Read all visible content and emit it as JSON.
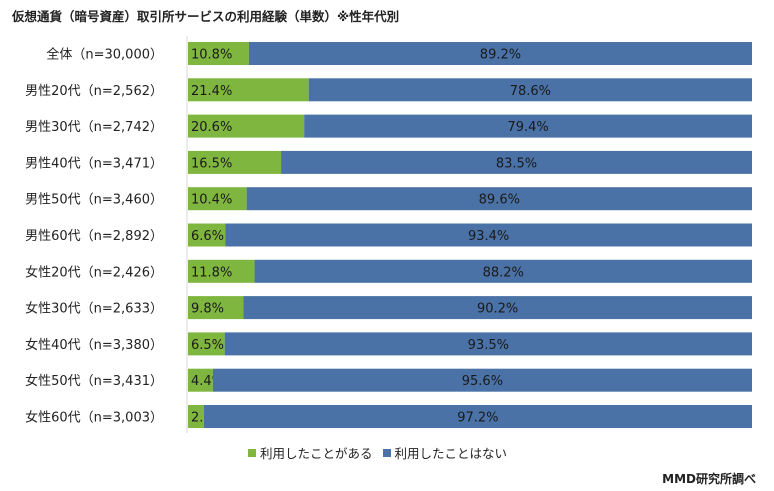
{
  "chart_data": {
    "type": "bar",
    "orientation": "horizontal",
    "stacked": true,
    "title": "仮想通貨（暗号資産）取引所サービスの利用経験（単数）※性年代別",
    "categories": [
      "全体（n=30,000）",
      "男性20代（n=2,562）",
      "男性30代（n=2,742）",
      "男性40代（n=3,471）",
      "男性50代（n=3,460）",
      "男性60代（n=2,892）",
      "女性20代（n=2,426）",
      "女性30代（n=2,633）",
      "女性40代（n=3,380）",
      "女性50代（n=3,431）",
      "女性60代（n=3,003）"
    ],
    "series": [
      {
        "name": "利用したことがある",
        "color": "#7fb640",
        "values": [
          10.8,
          21.4,
          20.6,
          16.5,
          10.4,
          6.6,
          11.8,
          9.8,
          6.5,
          4.4,
          2.8
        ]
      },
      {
        "name": "利用したことはない",
        "color": "#4a72a6",
        "values": [
          89.2,
          78.6,
          79.4,
          83.5,
          89.6,
          93.4,
          88.2,
          90.2,
          93.5,
          95.6,
          97.2
        ]
      }
    ],
    "xlim": [
      0,
      100
    ],
    "legend": "bottom",
    "grid": false
  },
  "source": "MMD研究所調べ"
}
